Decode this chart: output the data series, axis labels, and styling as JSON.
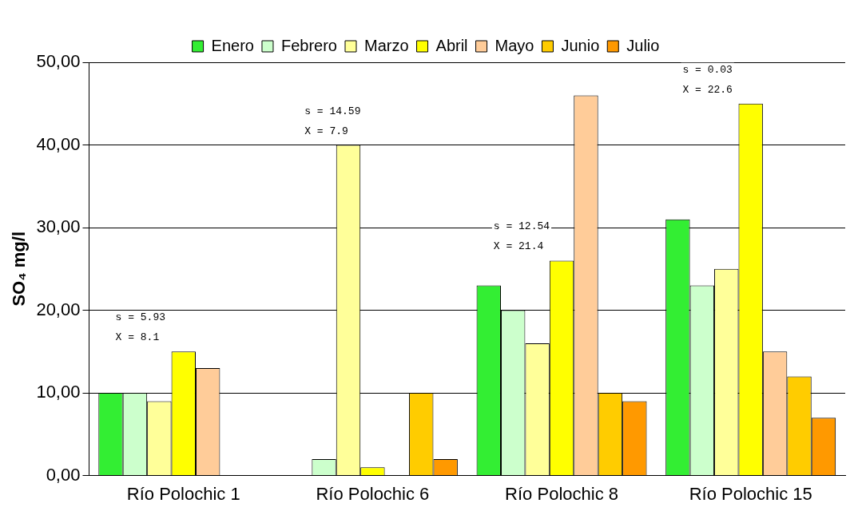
{
  "chart_data": {
    "type": "bar",
    "ylabel": "SO₄ mg/l",
    "categories": [
      "Río Polochic 1",
      "Río Polochic 6",
      "Río Polochic 8",
      "Río Polochic 15"
    ],
    "series": [
      {
        "name": "Enero",
        "color": "#33ee33",
        "values": [
          10,
          null,
          23,
          31
        ]
      },
      {
        "name": "Febrero",
        "color": "#ccffcc",
        "values": [
          10,
          2,
          20,
          23
        ]
      },
      {
        "name": "Marzo",
        "color": "#ffff99",
        "values": [
          9,
          40,
          16,
          25
        ]
      },
      {
        "name": "Abril",
        "color": "#ffff00",
        "values": [
          15,
          1,
          26,
          45
        ]
      },
      {
        "name": "Mayo",
        "color": "#ffcc99",
        "values": [
          13,
          null,
          46,
          15
        ]
      },
      {
        "name": "Junio",
        "color": "#ffcc00",
        "values": [
          null,
          10,
          10,
          12
        ]
      },
      {
        "name": "Julio",
        "color": "#ff9900",
        "values": [
          null,
          2,
          9,
          7
        ]
      }
    ],
    "ylim": [
      0,
      50
    ],
    "yticks": [
      {
        "value": 0,
        "label": "0,00"
      },
      {
        "value": 10,
        "label": "10,00"
      },
      {
        "value": 20,
        "label": "20,00"
      },
      {
        "value": 30,
        "label": "30,00"
      },
      {
        "value": 40,
        "label": "40,00"
      },
      {
        "value": 50,
        "label": "50,00"
      }
    ],
    "grid": "y",
    "legend": "top",
    "annotations": [
      "s = 5.93\nX = 8.1",
      "s = 14.59\nX = 7.9",
      "s = 12.54\nX = 21.4",
      "s = 0.03\nX = 22.6"
    ]
  }
}
